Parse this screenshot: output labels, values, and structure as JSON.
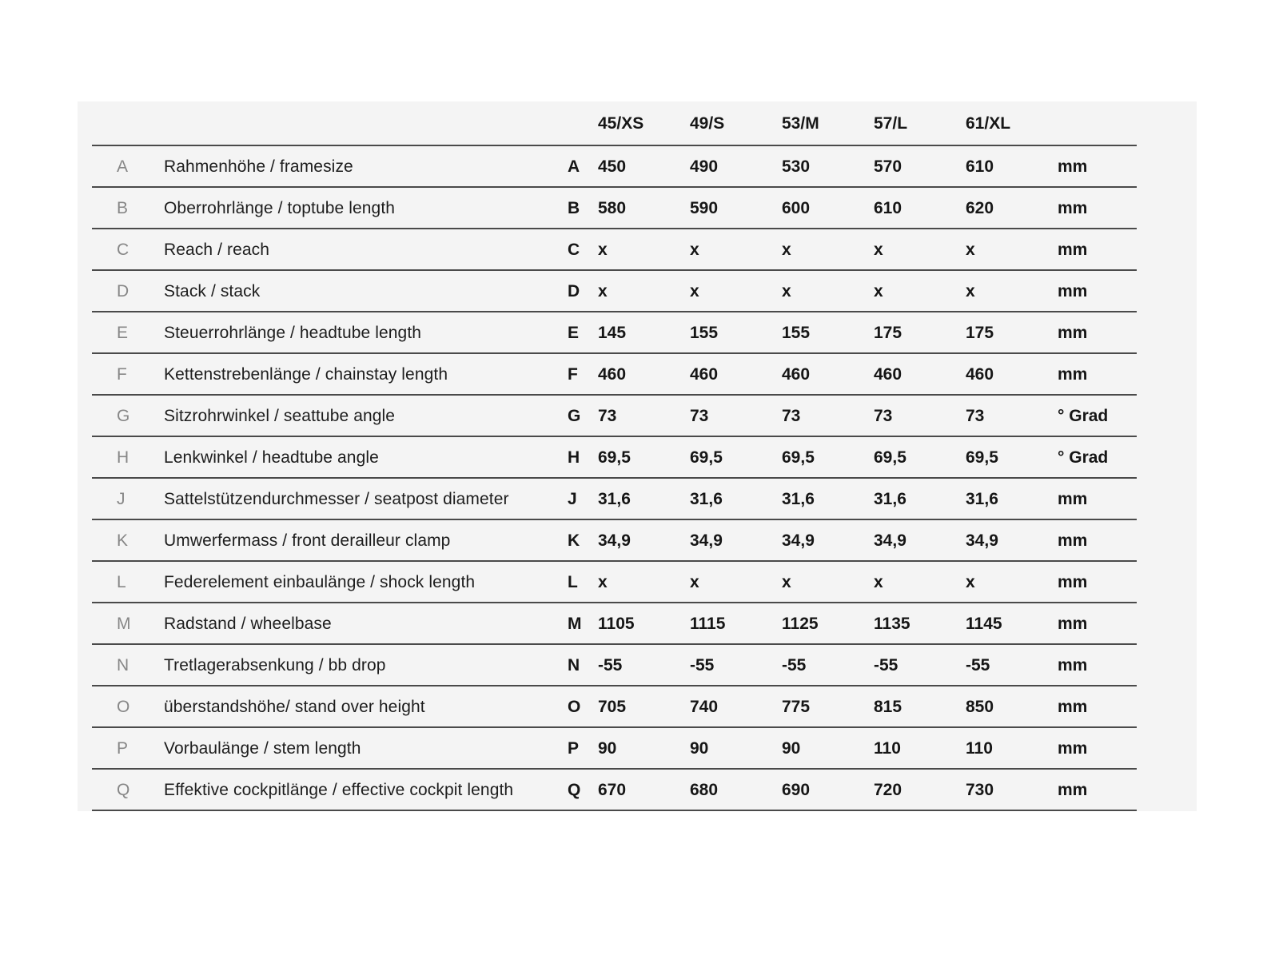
{
  "colors": {
    "page_background": "#ffffff",
    "panel_background": "#f4f4f4",
    "rule_line": "#4a4a4a",
    "value_text": "#161616",
    "label_text": "#1d1d1d",
    "muted_letter_text": "#878787"
  },
  "table": {
    "sizes": [
      "45/XS",
      "49/S",
      "53/M",
      "57/L",
      "61/XL"
    ],
    "rows": [
      {
        "letter": "A",
        "label": "Rahmenhöhe / framesize",
        "values": [
          "450",
          "490",
          "530",
          "570",
          "610"
        ],
        "unit": "mm"
      },
      {
        "letter": "B",
        "label": "Oberrohrlänge / toptube length",
        "values": [
          "580",
          "590",
          "600",
          "610",
          "620"
        ],
        "unit": "mm"
      },
      {
        "letter": "C",
        "label": "Reach / reach",
        "values": [
          "x",
          "x",
          "x",
          "x",
          "x"
        ],
        "unit": "mm"
      },
      {
        "letter": "D",
        "label": "Stack / stack",
        "values": [
          "x",
          "x",
          "x",
          "x",
          "x"
        ],
        "unit": "mm"
      },
      {
        "letter": "E",
        "label": "Steuerrohrlänge / headtube length",
        "values": [
          "145",
          "155",
          "155",
          "175",
          "175"
        ],
        "unit": "mm"
      },
      {
        "letter": "F",
        "label": "Kettenstrebenlänge / chainstay length",
        "values": [
          "460",
          "460",
          "460",
          "460",
          "460"
        ],
        "unit": "mm"
      },
      {
        "letter": "G",
        "label": "Sitzrohrwinkel / seattube angle",
        "values": [
          "73",
          "73",
          "73",
          "73",
          "73"
        ],
        "unit": "° Grad"
      },
      {
        "letter": "H",
        "label": "Lenkwinkel / headtube angle",
        "values": [
          "69,5",
          "69,5",
          "69,5",
          "69,5",
          "69,5"
        ],
        "unit": "° Grad"
      },
      {
        "letter": "J",
        "label": "Sattelstützendurchmesser / seatpost diameter",
        "values": [
          "31,6",
          "31,6",
          "31,6",
          "31,6",
          "31,6"
        ],
        "unit": "mm"
      },
      {
        "letter": "K",
        "label": "Umwerfermass / front derailleur clamp",
        "values": [
          "34,9",
          "34,9",
          "34,9",
          "34,9",
          "34,9"
        ],
        "unit": "mm"
      },
      {
        "letter": "L",
        "label": "Federelement einbaulänge / shock length",
        "values": [
          "x",
          "x",
          "x",
          "x",
          "x"
        ],
        "unit": "mm"
      },
      {
        "letter": "M",
        "label": "Radstand / wheelbase",
        "values": [
          "1105",
          "1115",
          "1125",
          "1135",
          "1145"
        ],
        "unit": "mm"
      },
      {
        "letter": "N",
        "label": "Tretlagerabsenkung / bb drop",
        "values": [
          "-55",
          "-55",
          "-55",
          "-55",
          "-55"
        ],
        "unit": "mm"
      },
      {
        "letter": "O",
        "label": "überstandshöhe/ stand over height",
        "values": [
          "705",
          "740",
          "775",
          "815",
          "850"
        ],
        "unit": "mm"
      },
      {
        "letter": "P",
        "label": "Vorbaulänge / stem length",
        "values": [
          "90",
          "90",
          "90",
          "110",
          "110"
        ],
        "unit": "mm"
      },
      {
        "letter": "Q",
        "label": "Effektive cockpitlänge / effective cockpit length",
        "values": [
          "670",
          "680",
          "690",
          "720",
          "730"
        ],
        "unit": "mm"
      }
    ]
  }
}
